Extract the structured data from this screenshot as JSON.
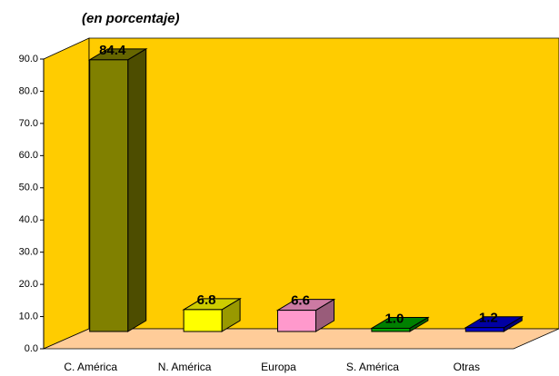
{
  "chart_data": {
    "type": "bar3d",
    "title": "(en porcentaje)",
    "categories": [
      "C. América",
      "N. América",
      "Europa",
      "S. América",
      "Otras"
    ],
    "values": [
      84.4,
      6.8,
      6.6,
      1.0,
      1.2
    ],
    "value_labels": [
      "84.4",
      "6.8",
      "6.6",
      "1.0",
      "1.2"
    ],
    "colors": [
      "#808000",
      "#ffff00",
      "#ff99cc",
      "#00a000",
      "#0000cc"
    ],
    "ylim": [
      0,
      90
    ],
    "yticks": [
      {
        "value": 0,
        "label": "0.0"
      },
      {
        "value": 10,
        "label": "10.0"
      },
      {
        "value": 20,
        "label": "20.0"
      },
      {
        "value": 30,
        "label": "30.0"
      },
      {
        "value": 40,
        "label": "40.0"
      },
      {
        "value": 50,
        "label": "50.0"
      },
      {
        "value": 60,
        "label": "60.0"
      },
      {
        "value": 70,
        "label": "70.0"
      },
      {
        "value": 80,
        "label": "80.0"
      },
      {
        "value": 90,
        "label": "90.0"
      }
    ]
  }
}
